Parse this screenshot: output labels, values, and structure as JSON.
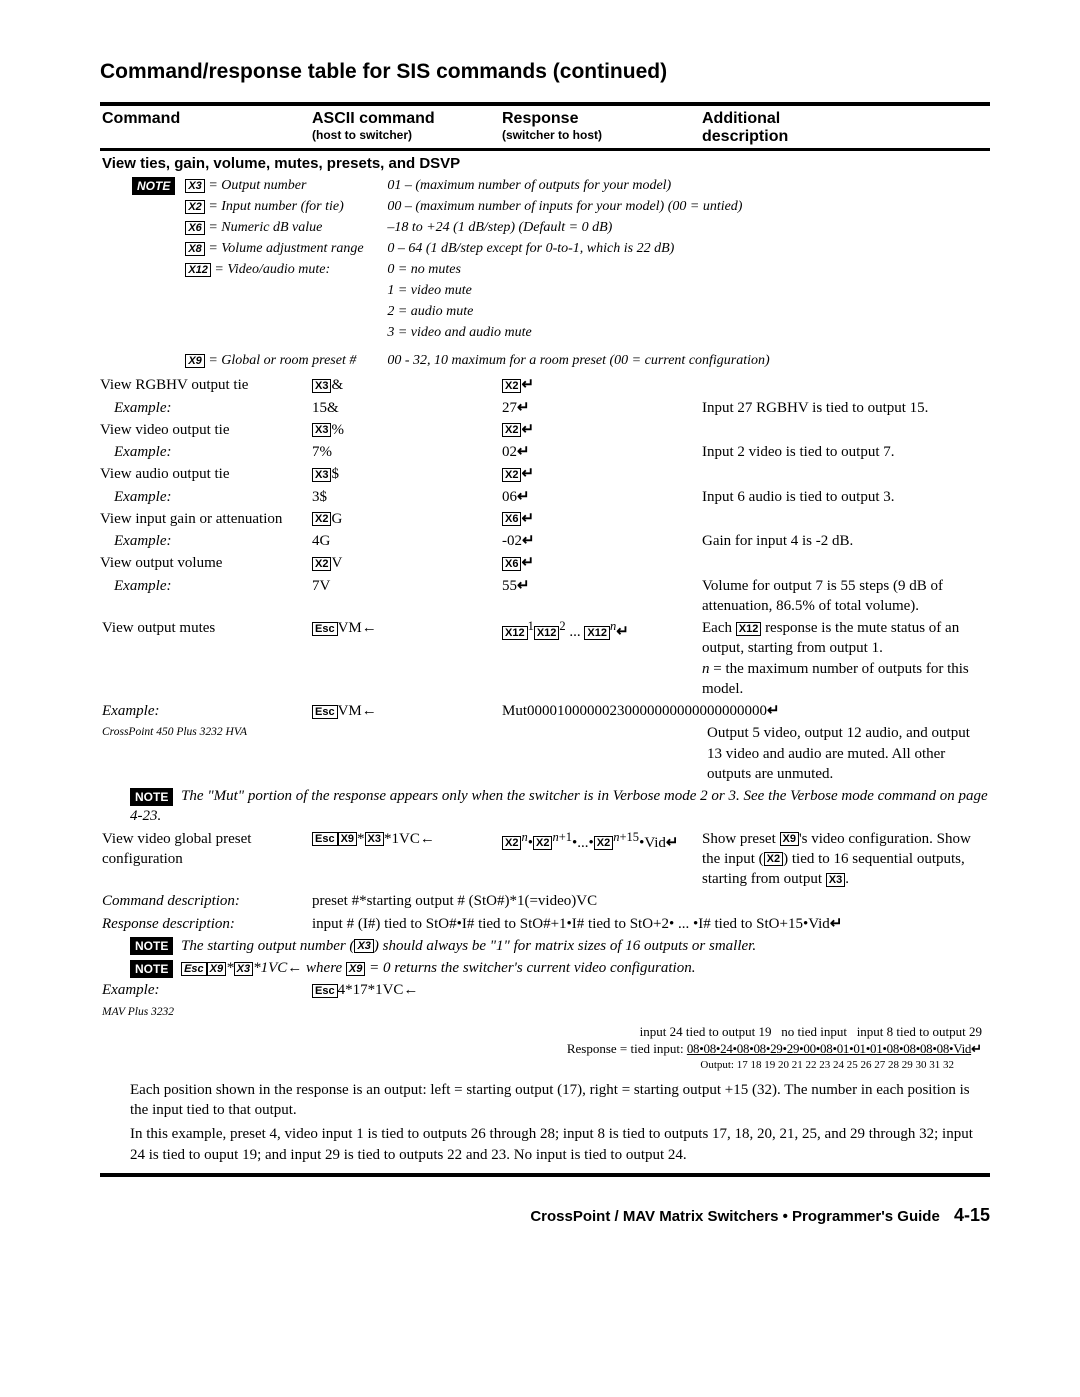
{
  "title": "Command/response table for SIS commands (continued)",
  "headers": {
    "c1": "Command",
    "c2": "ASCII command",
    "c2s": "(host to switcher)",
    "c3": "Response",
    "c3s": "(switcher to host)",
    "c4": "Additional",
    "c4b": "description"
  },
  "section": "View ties, gain, volume, mutes, presets, and DSVP",
  "defs": {
    "l": [
      {
        "v": "X3",
        "t": "= Output number"
      },
      {
        "v": "X2",
        "t": "= Input number (for tie)"
      },
      {
        "v": "X6",
        "t": "= Numeric dB value"
      },
      {
        "v": "X8",
        "t": "= Volume adjustment range"
      },
      {
        "v": "X12",
        "t": "= Video/audio mute:"
      }
    ],
    "r": [
      "01 – (maximum number of outputs for your model)",
      "00 – (maximum number of inputs for your model)  (00 = untied)",
      "–18 to +24 (1 dB/step) (Default = 0 dB)",
      "0 – 64 (1 dB/step except for 0-to-1, which is 22 dB)",
      "0 = no mutes",
      "1 = video mute",
      "2 = audio mute",
      "3 = video and audio mute"
    ],
    "l2": {
      "v": "X9",
      "t": "= Global or room preset #"
    },
    "r2": "00 - 32, 10 maximum for a room preset (00 = current configuration)"
  },
  "rows": [
    {
      "cmd": "View RGBHV output tie",
      "a_pre": "X3",
      "a_post": "&",
      "r_pre": "X2",
      "desc": ""
    },
    {
      "cmd": "Example:",
      "italic": true,
      "a": "15&",
      "r": "27",
      "desc": "Input 27 RGBHV is tied to output 15."
    },
    {
      "cmd": "View video output tie",
      "a_pre": "X3",
      "a_post": "%",
      "r_pre": "X2",
      "desc": ""
    },
    {
      "cmd": "Example:",
      "italic": true,
      "a": "7%",
      "r": "02",
      "desc": "Input 2 video is tied to output 7."
    },
    {
      "cmd": "View audio output tie",
      "a_pre": "X3",
      "a_post": "$",
      "r_pre": "X2",
      "desc": ""
    },
    {
      "cmd": "Example:",
      "italic": true,
      "a": "3$",
      "r": "06",
      "desc": "Input 6 audio is tied to output 3."
    },
    {
      "cmd": "View input gain or attenuation",
      "a_pre": "X2",
      "a_post": "G",
      "r_pre": "X6",
      "desc": ""
    },
    {
      "cmd": "Example:",
      "italic": true,
      "a": "4G",
      "r": "-02",
      "desc": "Gain for input 4 is -2 dB."
    },
    {
      "cmd": "View output volume",
      "a_pre": "X2",
      "a_post": "V",
      "r_pre": "X6",
      "desc": ""
    },
    {
      "cmd": "Example:",
      "italic": true,
      "a": "7V",
      "r": "55",
      "desc": "Volume for output 7 is 55 steps (9 dB of attenuation, 86.5% of total volume)."
    }
  ],
  "mutes": {
    "cmd": "View output mutes",
    "desc_lines": [
      "Each X12 response is the mute status of an output, starting from output 1.",
      "n = the maximum number of outputs for this model."
    ],
    "ex": "Example:",
    "ex2": "CrossPoint 450 Plus 3232 HVA",
    "mutresp": "Mut00001000000230000000000000000000",
    "ex_desc": "Output 5 video, output 12 audio, and output 13 video and audio are muted.  All other outputs are unmuted.",
    "note": "The \"Mut\" portion of the response appears only when the switcher is in Verbose mode 2 or 3.  See the Verbose mode command on page 4-23."
  },
  "preset": {
    "cmd": "View video global preset configuration",
    "desc": "Show preset X9's video configuration.  Show the input (X2) tied to 16 sequential outputs, starting from output X3.",
    "cd_label": "Command description:",
    "cd": "preset #*starting output # (StO#)*1(=video)VC",
    "rd_label": "Response description:",
    "rd": "input # (I#) tied to StO#•I# tied to StO#+1•I# tied to StO+2• ... •I# tied to StO+15•Vid",
    "note1_a": "The starting output number (",
    "note1_b": ") should always be \"1\" for matrix sizes of 16 outputs or smaller.",
    "note2_a": "*1VC",
    "note2_b": " where ",
    "note2_c": " = 0 returns the switcher's current video configuration.",
    "ex": "Example:",
    "ex2": "MAV Plus 3232",
    "ex_ascii": "4*17*1VC",
    "topline": {
      "a": "input 24 tied to output 19",
      "b": "no tied input",
      "c": "input 8 tied to output 29"
    },
    "resp_lead": "Response = tied input:",
    "resp_vals": "08•08•24•08•08•29•29•00•08•01•01•01•08•08•08•08•Vid",
    "resp_out": "Output:  17   18   19   20   21   22   23   24   25   26   27   28   29   30   31   32",
    "p1": "Each position shown in the response is an output: left = starting output (17), right = starting output +15 (32).  The number in each position is the input tied to that output.",
    "p2": "In this example, preset 4, video input 1 is tied to outputs 26 through 28; input 8 is tied to outputs 17, 18, 20, 21, 25, and 29 through 32; input 24 is tied to ouput 19; and input 29 is tied to outputs 22 and 23.  No input is tied to output 24."
  },
  "footer": {
    "text": "CrossPoint / MAV Matrix Switchers • Programmer's Guide",
    "page": "4-15"
  }
}
